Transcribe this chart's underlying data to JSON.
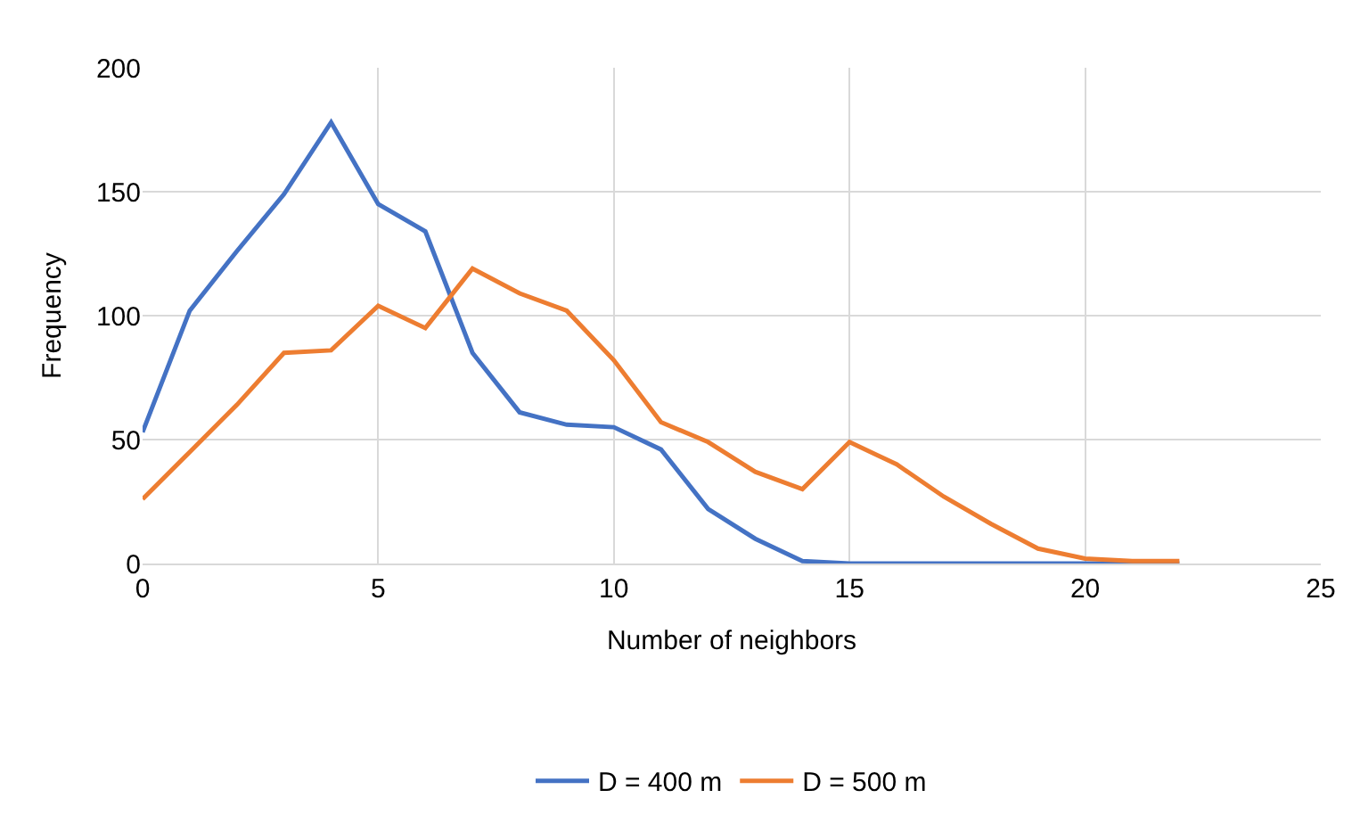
{
  "chart_data": {
    "type": "line",
    "xlabel": "Number of neighbors",
    "ylabel": "Frequency",
    "x": [
      0,
      1,
      2,
      3,
      4,
      5,
      6,
      7,
      8,
      9,
      10,
      11,
      12,
      13,
      14,
      15,
      16,
      17,
      18,
      19,
      20,
      21,
      22
    ],
    "series": [
      {
        "name": "D = 400 m",
        "color": "#4472c4",
        "values": [
          53,
          102,
          126,
          149,
          178,
          145,
          134,
          85,
          61,
          56,
          55,
          46,
          22,
          10,
          1,
          0,
          0,
          0,
          0,
          0,
          0,
          0,
          0
        ]
      },
      {
        "name": "D = 500 m",
        "color": "#ed7d31",
        "values": [
          26,
          45,
          64,
          85,
          86,
          104,
          95,
          119,
          109,
          102,
          82,
          57,
          49,
          37,
          30,
          49,
          40,
          27,
          16,
          6,
          2,
          1,
          1
        ]
      }
    ],
    "xlim": [
      0,
      25
    ],
    "xticks": [
      0,
      5,
      10,
      15,
      20,
      25
    ],
    "ylim": [
      0,
      200
    ],
    "yticks": [
      0,
      50,
      100,
      150,
      200
    ],
    "grid": true,
    "legend": "bottom",
    "marker": "none",
    "line_style": "solid"
  }
}
